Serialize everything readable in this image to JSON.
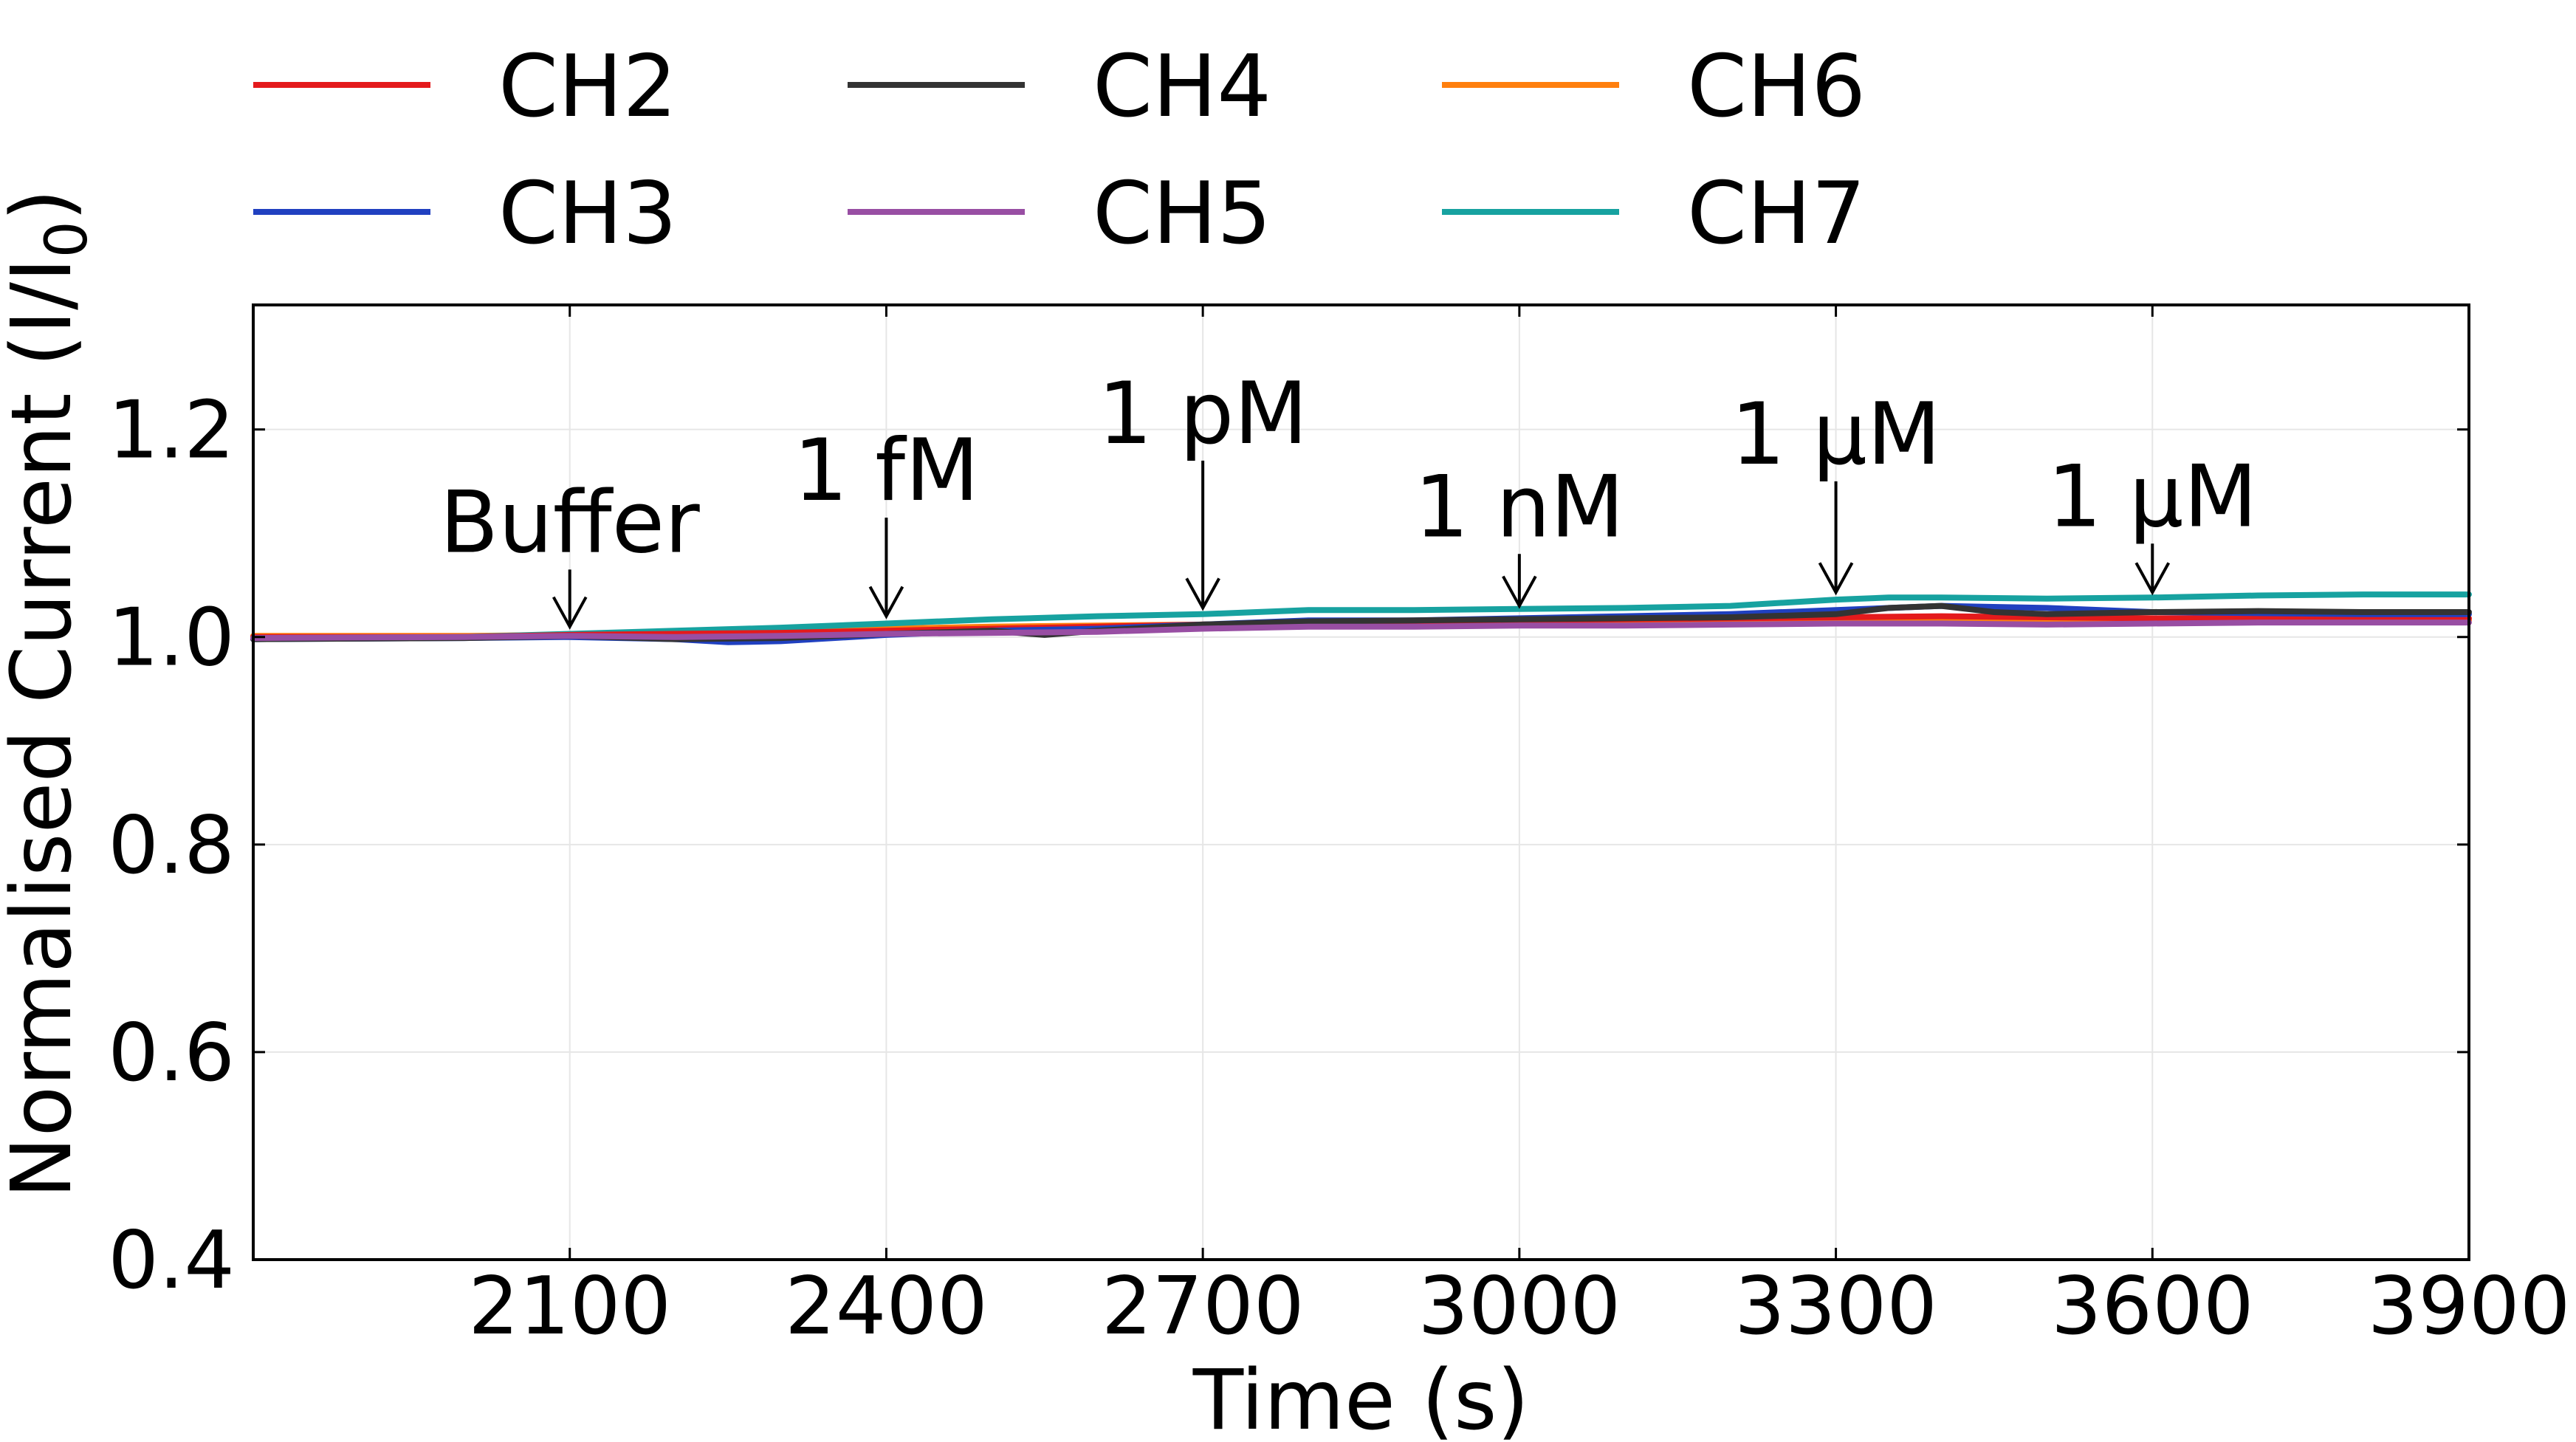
{
  "chart_data": {
    "type": "line",
    "title": "",
    "xlabel": "Time (s)",
    "ylabel_main": "Normalised Current (I/I",
    "ylabel_sub": "0",
    "ylabel_end": ")",
    "xlim": [
      1800,
      3900
    ],
    "ylim": [
      0.4,
      1.32
    ],
    "xticks": [
      2100,
      2400,
      2700,
      3000,
      3300,
      3600,
      3900
    ],
    "yticks": [
      "0.4",
      "0.6",
      "0.8",
      "1.0",
      "1.2"
    ],
    "grid": true,
    "legend_position": "top-left, above plot, 3 columns",
    "series": [
      {
        "name": "CH2",
        "color": "#e41a1c",
        "x": [
          1800,
          2000,
          2100,
          2200,
          2300,
          2400,
          2500,
          2600,
          2700,
          2800,
          2900,
          3000,
          3100,
          3200,
          3300,
          3400,
          3500,
          3600,
          3700,
          3800,
          3900
        ],
        "y": [
          1.0,
          1.0,
          1.002,
          1.003,
          1.004,
          1.006,
          1.008,
          1.01,
          1.012,
          1.014,
          1.015,
          1.016,
          1.017,
          1.018,
          1.019,
          1.02,
          1.019,
          1.018,
          1.018,
          1.018,
          1.018
        ]
      },
      {
        "name": "CH3",
        "color": "#2040c0",
        "x": [
          1800,
          2000,
          2100,
          2200,
          2250,
          2300,
          2400,
          2500,
          2600,
          2700,
          2800,
          2900,
          3000,
          3100,
          3200,
          3300,
          3400,
          3500,
          3600,
          3700,
          3800,
          3900
        ],
        "y": [
          0.998,
          0.999,
          1.0,
          0.998,
          0.995,
          0.996,
          1.002,
          1.006,
          1.008,
          1.012,
          1.016,
          1.016,
          1.018,
          1.02,
          1.022,
          1.026,
          1.03,
          1.028,
          1.024,
          1.023,
          1.022,
          1.022
        ]
      },
      {
        "name": "CH4",
        "color": "#333333",
        "x": [
          1800,
          2000,
          2100,
          2200,
          2300,
          2400,
          2500,
          2550,
          2600,
          2700,
          2800,
          2900,
          3000,
          3100,
          3200,
          3300,
          3350,
          3400,
          3450,
          3500,
          3600,
          3700,
          3800,
          3900
        ],
        "y": [
          0.998,
          0.999,
          1.001,
          0.998,
          0.999,
          1.003,
          1.006,
          1.002,
          1.006,
          1.012,
          1.015,
          1.016,
          1.017,
          1.018,
          1.019,
          1.022,
          1.028,
          1.03,
          1.024,
          1.022,
          1.024,
          1.025,
          1.024,
          1.024
        ]
      },
      {
        "name": "CH5",
        "color": "#984ea3",
        "x": [
          1800,
          2000,
          2100,
          2200,
          2300,
          2400,
          2500,
          2600,
          2700,
          2800,
          2900,
          3000,
          3100,
          3200,
          3300,
          3400,
          3500,
          3600,
          3700,
          3800,
          3900
        ],
        "y": [
          0.999,
          1.0,
          1.001,
          1.0,
          1.001,
          1.003,
          1.004,
          1.005,
          1.008,
          1.01,
          1.01,
          1.011,
          1.011,
          1.012,
          1.013,
          1.013,
          1.012,
          1.013,
          1.014,
          1.014,
          1.014
        ]
      },
      {
        "name": "CH6",
        "color": "#ff7f0e",
        "x": [
          1800,
          2000,
          2100,
          2200,
          2300,
          2400,
          2500,
          2600,
          2700,
          2800,
          2900,
          3000,
          3100,
          3200,
          3300,
          3400,
          3500,
          3600,
          3700,
          3800,
          3900
        ],
        "y": [
          1.001,
          1.001,
          1.002,
          1.003,
          1.005,
          1.008,
          1.01,
          1.011,
          1.012,
          1.013,
          1.013,
          1.014,
          1.014,
          1.014,
          1.015,
          1.015,
          1.015,
          1.016,
          1.016,
          1.016,
          1.016
        ]
      },
      {
        "name": "CH7",
        "color": "#17a2a0",
        "x": [
          1800,
          2000,
          2100,
          2200,
          2300,
          2400,
          2500,
          2600,
          2700,
          2800,
          2900,
          3000,
          3100,
          3200,
          3300,
          3350,
          3400,
          3500,
          3600,
          3700,
          3800,
          3900
        ],
        "y": [
          0.998,
          1.0,
          1.003,
          1.006,
          1.009,
          1.013,
          1.017,
          1.02,
          1.022,
          1.026,
          1.026,
          1.027,
          1.028,
          1.03,
          1.036,
          1.038,
          1.038,
          1.037,
          1.038,
          1.04,
          1.041,
          1.041
        ]
      }
    ],
    "annotations": [
      {
        "text": "Buffer",
        "x": 2100,
        "arrow_top": 1.065,
        "arrow_tip": 1.01
      },
      {
        "text": "1 fM",
        "x": 2400,
        "arrow_top": 1.115,
        "arrow_tip": 1.02
      },
      {
        "text": "1 pM",
        "x": 2700,
        "arrow_top": 1.17,
        "arrow_tip": 1.028
      },
      {
        "text": "1 nM",
        "x": 3000,
        "arrow_top": 1.08,
        "arrow_tip": 1.03
      },
      {
        "text": "1 µM",
        "x": 3300,
        "arrow_top": 1.15,
        "arrow_tip": 1.043
      },
      {
        "text": "1 µM",
        "x": 3600,
        "arrow_top": 1.09,
        "arrow_tip": 1.043
      }
    ]
  }
}
